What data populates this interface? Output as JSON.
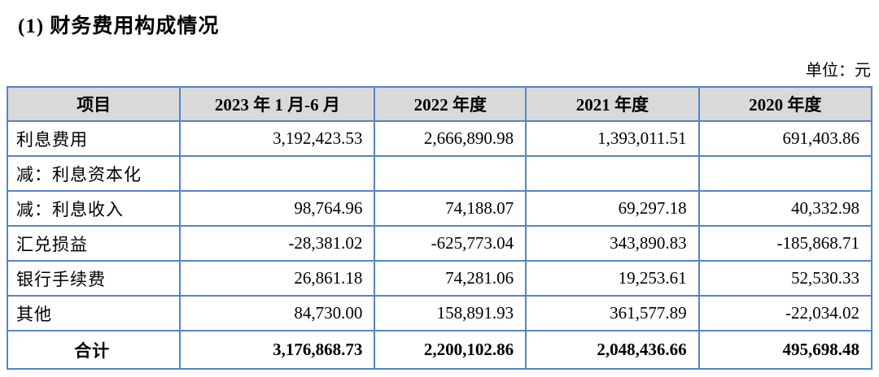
{
  "page": {
    "title": "(1) 财务费用构成情况",
    "unit_label": "单位：元"
  },
  "table": {
    "columns": [
      "项目",
      "2023 年 1 月-6 月",
      "2022 年度",
      "2021 年度",
      "2020 年度"
    ],
    "rows": [
      {
        "label": "利息费用",
        "values": [
          "3,192,423.53",
          "2,666,890.98",
          "1,393,011.51",
          "691,403.86"
        ]
      },
      {
        "label": "减：利息资本化",
        "values": [
          "",
          "",
          "",
          ""
        ]
      },
      {
        "label": "减：利息收入",
        "values": [
          "98,764.96",
          "74,188.07",
          "69,297.18",
          "40,332.98"
        ]
      },
      {
        "label": "汇兑损益",
        "values": [
          "-28,381.02",
          "-625,773.04",
          "343,890.83",
          "-185,868.71"
        ]
      },
      {
        "label": "银行手续费",
        "values": [
          "26,861.18",
          "74,281.06",
          "19,253.61",
          "52,530.33"
        ]
      },
      {
        "label": "其他",
        "values": [
          "84,730.00",
          "158,891.93",
          "361,577.89",
          "-22,034.02"
        ]
      }
    ],
    "total": {
      "label": "合计",
      "values": [
        "3,176,868.73",
        "2,200,102.86",
        "2,048,436.66",
        "495,698.48"
      ]
    }
  },
  "colors": {
    "table_border": "#5585c5",
    "header_bg": "#d9d9d9",
    "text": "#000000",
    "page_bg": "#ffffff"
  }
}
